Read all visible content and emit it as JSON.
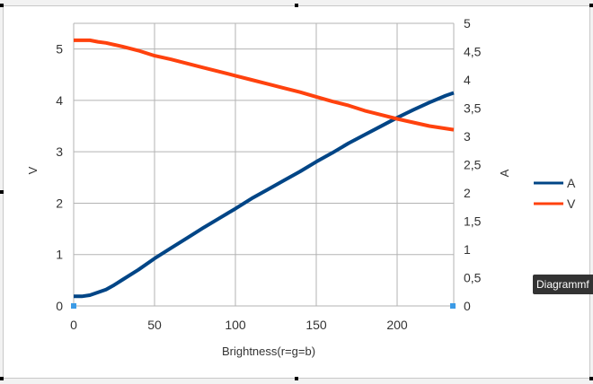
{
  "chart_data": {
    "type": "line",
    "xlabel": "Brightness(r=g=b)",
    "ylabel_left": "V",
    "ylabel_right": "A",
    "xlim": [
      0,
      235
    ],
    "ylim_left": [
      0,
      5.5
    ],
    "ylim_right": [
      0,
      5
    ],
    "x_ticks": [
      "0",
      "50",
      "100",
      "150",
      "200"
    ],
    "y_left_ticks": [
      "0",
      "1",
      "2",
      "3",
      "4",
      "5"
    ],
    "y_right_ticks": [
      "0",
      "0,5",
      "1",
      "1,5",
      "2",
      "2,5",
      "3",
      "3,5",
      "4",
      "4,5",
      "5"
    ],
    "grid": true,
    "legend_position": "right",
    "series": [
      {
        "name": "A",
        "axis": "right",
        "color": "#004586",
        "x": [
          0,
          5,
          10,
          15,
          20,
          25,
          30,
          40,
          50,
          60,
          70,
          80,
          90,
          100,
          110,
          120,
          130,
          140,
          150,
          160,
          170,
          180,
          190,
          200,
          210,
          220,
          230,
          235
        ],
        "y": [
          0.17,
          0.17,
          0.19,
          0.24,
          0.29,
          0.37,
          0.46,
          0.64,
          0.84,
          1.02,
          1.2,
          1.38,
          1.55,
          1.72,
          1.9,
          2.06,
          2.22,
          2.38,
          2.55,
          2.71,
          2.88,
          3.03,
          3.18,
          3.33,
          3.47,
          3.6,
          3.72,
          3.77
        ]
      },
      {
        "name": "V",
        "axis": "left",
        "color": "#ff420e",
        "x": [
          0,
          5,
          10,
          15,
          20,
          30,
          40,
          50,
          60,
          70,
          80,
          90,
          100,
          110,
          120,
          130,
          140,
          150,
          160,
          170,
          180,
          190,
          200,
          210,
          220,
          235
        ],
        "y": [
          5.17,
          5.17,
          5.17,
          5.14,
          5.12,
          5.05,
          4.97,
          4.87,
          4.8,
          4.72,
          4.64,
          4.56,
          4.48,
          4.4,
          4.32,
          4.24,
          4.16,
          4.07,
          3.98,
          3.9,
          3.8,
          3.72,
          3.64,
          3.57,
          3.5,
          3.43
        ]
      }
    ]
  },
  "tooltip_text": "Diagrammf"
}
